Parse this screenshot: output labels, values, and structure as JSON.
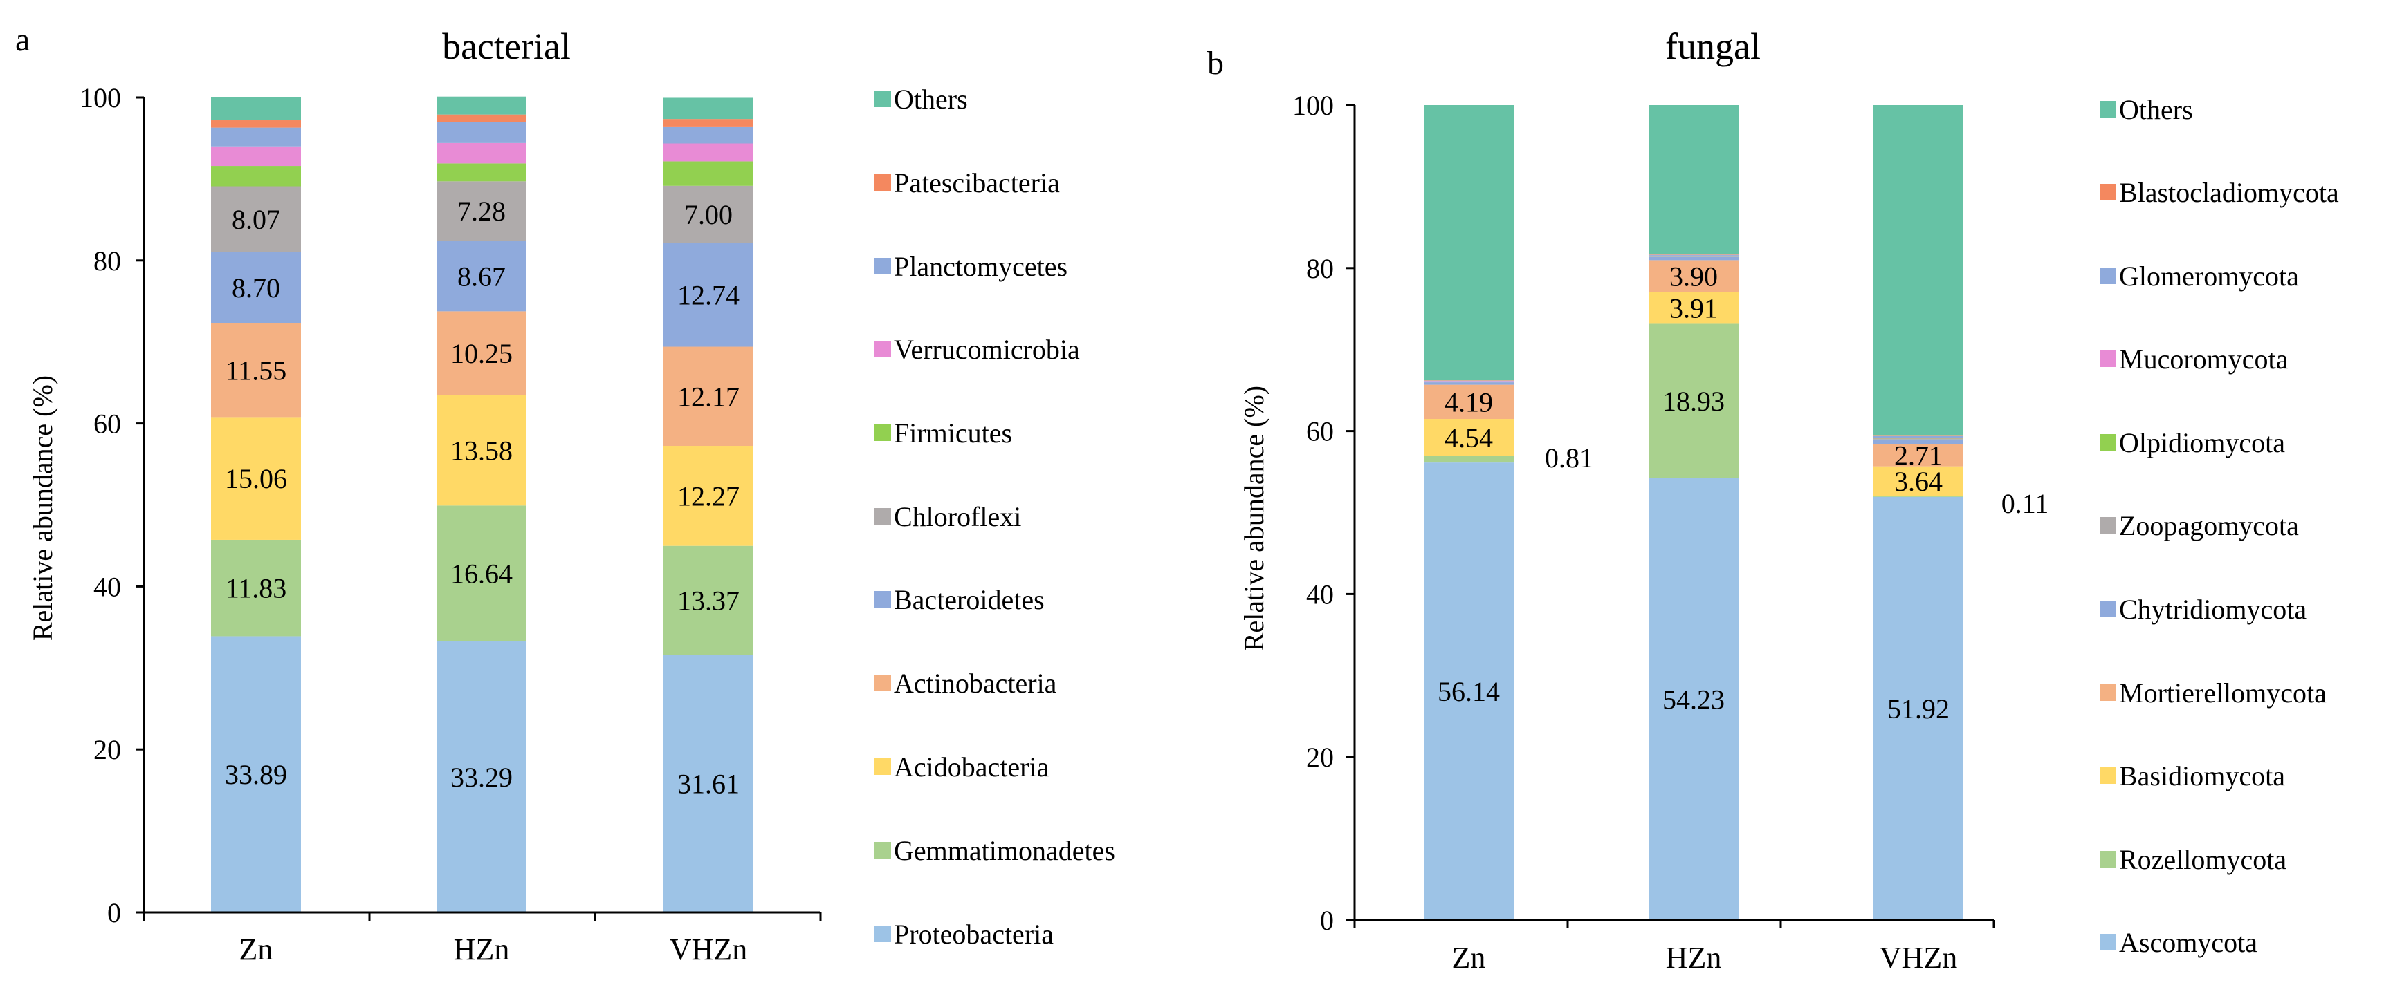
{
  "panels": [
    "a",
    "b"
  ],
  "chart_data": [
    {
      "type": "bar",
      "stacked": true,
      "title": "bacterial",
      "xlabel": "",
      "ylabel": "Relative abundance (%)",
      "ylim": [
        0,
        100
      ],
      "yticks": [
        "0",
        "20",
        "40",
        "60",
        "80",
        "100"
      ],
      "categories": [
        "Zn",
        "HZn",
        "VHZn"
      ],
      "series": [
        {
          "name": "Proteobacteria",
          "color": "#9DC3E6",
          "values": [
            33.89,
            33.29,
            31.61
          ],
          "labels": [
            "33.89",
            "33.29",
            "31.61"
          ]
        },
        {
          "name": "Gemmatimonadetes",
          "color": "#A9D18E",
          "values": [
            11.83,
            16.64,
            13.37
          ],
          "labels": [
            "11.83",
            "16.64",
            "13.37"
          ]
        },
        {
          "name": "Acidobacteria",
          "color": "#FFD966",
          "values": [
            15.06,
            13.58,
            12.27
          ],
          "labels": [
            "15.06",
            "13.58",
            "12.27"
          ]
        },
        {
          "name": "Actinobacteria",
          "color": "#F4B183",
          "values": [
            11.55,
            10.25,
            12.17
          ],
          "labels": [
            "11.55",
            "10.25",
            "12.17"
          ]
        },
        {
          "name": "Bacteroidetes",
          "color": "#8FAADC",
          "values": [
            8.7,
            8.67,
            12.74
          ],
          "labels": [
            "8.70",
            "8.67",
            "12.74"
          ]
        },
        {
          "name": "Chloroflexi",
          "color": "#AFABAB",
          "values": [
            8.07,
            7.28,
            7.0
          ],
          "labels": [
            "8.07",
            "7.28",
            "7.00"
          ]
        },
        {
          "name": "Firmicutes",
          "color": "#92D050",
          "values": [
            2.5,
            2.2,
            3.0
          ],
          "labels": [
            "",
            "",
            ""
          ]
        },
        {
          "name": "Verrucomicrobia",
          "color": "#E88BD5",
          "values": [
            2.4,
            2.5,
            2.2
          ],
          "labels": [
            "",
            "",
            ""
          ]
        },
        {
          "name": "Planctomycetes",
          "color": "#8FAADC",
          "values": [
            2.3,
            2.6,
            2.0
          ],
          "labels": [
            "",
            "",
            ""
          ]
        },
        {
          "name": "Patescibacteria",
          "color": "#F4885F",
          "values": [
            0.9,
            0.9,
            1.0
          ],
          "labels": [
            "",
            "",
            ""
          ]
        },
        {
          "name": "Others",
          "color": "#66C2A5",
          "values": [
            2.8,
            2.2,
            2.6
          ],
          "labels": [
            "",
            "",
            ""
          ]
        }
      ]
    },
    {
      "type": "bar",
      "stacked": true,
      "title": "fungal",
      "xlabel": "",
      "ylabel": "Relative abundance (%)",
      "ylim": [
        0,
        100
      ],
      "yticks": [
        "0",
        "20",
        "40",
        "60",
        "80",
        "100"
      ],
      "categories": [
        "Zn",
        "HZn",
        "VHZn"
      ],
      "series": [
        {
          "name": "Ascomycota",
          "color": "#9DC3E6",
          "values": [
            56.14,
            54.23,
            51.92
          ],
          "labels": [
            "56.14",
            "54.23",
            "51.92"
          ]
        },
        {
          "name": "Rozellomycota",
          "color": "#A9D18E",
          "values": [
            0.81,
            18.93,
            0.11
          ],
          "labels": [
            "",
            "18.93",
            ""
          ]
        },
        {
          "name": "Basidiomycota",
          "color": "#FFD966",
          "values": [
            4.54,
            3.91,
            3.64
          ],
          "labels": [
            "4.54",
            "3.91",
            "3.64"
          ]
        },
        {
          "name": "Mortierellomycota",
          "color": "#F4B183",
          "values": [
            4.19,
            3.9,
            2.71
          ],
          "labels": [
            "4.19",
            "3.90",
            "2.71"
          ]
        },
        {
          "name": "Chytridiomycota",
          "color": "#8FAADC",
          "values": [
            0.3,
            0.4,
            0.6
          ],
          "labels": [
            "",
            "",
            ""
          ]
        },
        {
          "name": "Zoopagomycota",
          "color": "#AFABAB",
          "values": [
            0.05,
            0.05,
            0.05
          ],
          "labels": [
            "",
            "",
            ""
          ]
        },
        {
          "name": "Olpidiomycota",
          "color": "#92D050",
          "values": [
            0.05,
            0.05,
            0.05
          ],
          "labels": [
            "",
            "",
            ""
          ]
        },
        {
          "name": "Mucoromycota",
          "color": "#E88BD5",
          "values": [
            0.05,
            0.05,
            0.1
          ],
          "labels": [
            "",
            "",
            ""
          ]
        },
        {
          "name": "Glomeromycota",
          "color": "#8FAADC",
          "values": [
            0.05,
            0.1,
            0.2
          ],
          "labels": [
            "",
            "",
            ""
          ]
        },
        {
          "name": "Blastocladiomycota",
          "color": "#F4885F",
          "values": [
            0.05,
            0.05,
            0.05
          ],
          "labels": [
            "",
            "",
            ""
          ]
        },
        {
          "name": "Others",
          "color": "#66C2A5",
          "values": [
            33.77,
            18.33,
            40.57
          ],
          "labels": [
            "",
            "",
            ""
          ]
        }
      ],
      "outside_labels": [
        {
          "category": "Zn",
          "text": "0.81"
        },
        {
          "category": "VHZn",
          "text": "0.11"
        }
      ]
    }
  ]
}
